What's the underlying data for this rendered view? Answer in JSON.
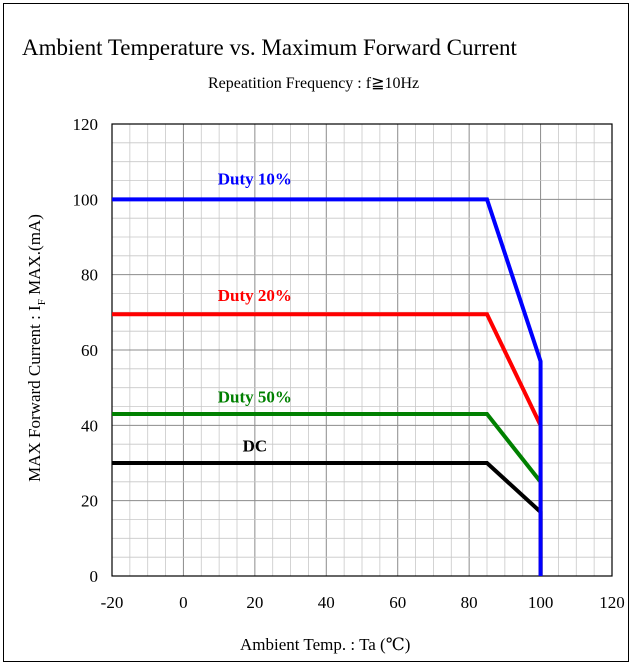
{
  "chart_data": {
    "type": "line",
    "title": "Ambient Temperature vs. Maximum Forward Current",
    "subtitle": "Repeatition Frequency : f≧10Hz",
    "xlabel": "Ambient Temp. : Ta (℃)",
    "ylabel": {
      "prefix": "MAX Forward Current : I",
      "subscript": "F",
      "suffix": " MAX.(mA)"
    },
    "xlim": [
      -20,
      120
    ],
    "ylim": [
      0,
      120
    ],
    "x_ticks": [
      -20,
      0,
      20,
      40,
      60,
      80,
      100,
      120
    ],
    "y_ticks": [
      0,
      20,
      40,
      60,
      80,
      100,
      120
    ],
    "grid": true,
    "series": [
      {
        "name": "Duty 10%",
        "color": "#0000ff",
        "label_at": [
          20,
          104
        ],
        "x": [
          -20,
          85,
          100,
          100
        ],
        "y": [
          100,
          100,
          57,
          0
        ]
      },
      {
        "name": "Duty 20%",
        "color": "#ff0000",
        "label_at": [
          20,
          73
        ],
        "x": [
          -20,
          85,
          100,
          100
        ],
        "y": [
          69.5,
          69.5,
          40,
          0
        ]
      },
      {
        "name": "Duty 50%",
        "color": "#008000",
        "label_at": [
          20,
          46
        ],
        "x": [
          -20,
          85,
          100,
          100
        ],
        "y": [
          43,
          43,
          25,
          0
        ]
      },
      {
        "name": "DC",
        "color": "#000000",
        "label_at": [
          20,
          33
        ],
        "x": [
          -20,
          85,
          100,
          100
        ],
        "y": [
          30,
          30,
          17,
          0
        ]
      }
    ]
  }
}
